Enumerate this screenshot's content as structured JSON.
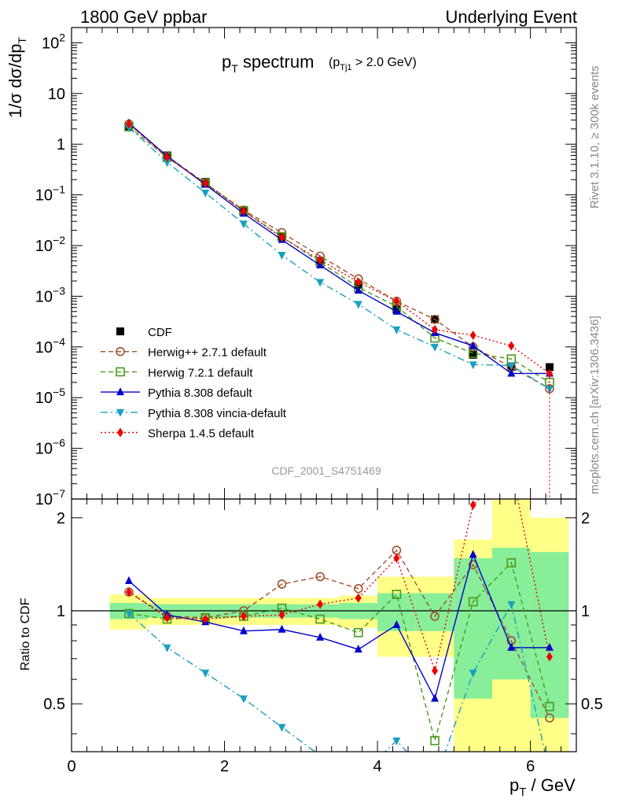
{
  "header": {
    "left": "1800 GeV ppbar",
    "right": "Underlying Event",
    "plot_title": "p",
    "plot_title_sub": "T",
    "plot_title_rest": " spectrum",
    "cut_open": "(p",
    "cut_sub": "Tj1",
    "cut_rest": " > 2.0 GeV)",
    "watermark": "CDF_2001_S4751469"
  },
  "side_labels": {
    "rivet": "Rivet 3.1.10, ≥ 300k events",
    "mcplots": "mcplots.cern.ch [arXiv:1306.3436]"
  },
  "colors": {
    "cdf": "#000000",
    "herwigpp": "#a0522d",
    "herwig7": "#4a9a1a",
    "pythia": "#0000cc",
    "vincia": "#1aa0c0",
    "sherpa": "#ee0000",
    "band_yellow": "#ffff88",
    "band_green": "#88ee99"
  },
  "chart_data": [
    {
      "type": "line",
      "title": "",
      "xlabel": "",
      "ylabel": "1/σ dσ/dp_T",
      "y_scale": "log",
      "ylim": [
        1e-07,
        200
      ],
      "xlim": [
        0,
        6.6
      ],
      "y_ticks": [
        {
          "v": 100,
          "base": "10",
          "exp": "2"
        },
        {
          "v": 10,
          "base": "10",
          "exp": ""
        },
        {
          "v": 1,
          "base": "1",
          "exp": ""
        },
        {
          "v": 0.1,
          "base": "10",
          "exp": "−1"
        },
        {
          "v": 0.01,
          "base": "10",
          "exp": "−2"
        },
        {
          "v": 0.001,
          "base": "10",
          "exp": "−3"
        },
        {
          "v": 0.0001,
          "base": "10",
          "exp": "−4"
        },
        {
          "v": 1e-05,
          "base": "10",
          "exp": "−5"
        },
        {
          "v": 1e-06,
          "base": "10",
          "exp": "−6"
        },
        {
          "v": 1e-07,
          "base": "10",
          "exp": "−7"
        }
      ],
      "legend_position": "bottom-left",
      "x": [
        0.75,
        1.25,
        1.75,
        2.25,
        2.75,
        3.25,
        3.75,
        4.25,
        4.75,
        5.25,
        5.75,
        6.25
      ],
      "series": [
        {
          "name": "CDF",
          "key": "cdf",
          "marker": "square",
          "line": "none",
          "values": [
            2.2,
            0.6,
            0.18,
            0.05,
            0.015,
            0.005,
            0.0017,
            0.00055,
            0.00035,
            7e-05,
            4e-05,
            4e-05
          ]
        },
        {
          "name": "Herwig++ 2.7.1 default",
          "key": "herwigpp",
          "marker": "circle-open",
          "line": "dashed",
          "values": [
            2.5,
            0.58,
            0.17,
            0.05,
            0.018,
            0.0062,
            0.0022,
            0.0008,
            0.00035,
            0.0001,
            4e-05,
            1.5e-05
          ]
        },
        {
          "name": "Herwig 7.2.1 default",
          "key": "herwig7",
          "marker": "square-open",
          "line": "dashed",
          "values": [
            2.2,
            0.55,
            0.17,
            0.048,
            0.015,
            0.0047,
            0.0015,
            0.00063,
            0.00015,
            7.5e-05,
            5.8e-05,
            2e-05
          ]
        },
        {
          "name": "Pythia 8.308 default",
          "key": "pythia",
          "marker": "triangle-up",
          "line": "solid",
          "values": [
            2.6,
            0.58,
            0.16,
            0.043,
            0.013,
            0.0041,
            0.0013,
            0.0005,
            0.00019,
            0.000105,
            3e-05,
            3e-05
          ]
        },
        {
          "name": "Pythia 8.308 vincia-default",
          "key": "vincia",
          "marker": "triangle-down",
          "line": "dashdot",
          "values": [
            2.15,
            0.44,
            0.11,
            0.027,
            0.0065,
            0.0019,
            0.0007,
            0.00022,
            0.0001,
            4.5e-05,
            4.3e-05,
            1.5e-05
          ]
        },
        {
          "name": "Sherpa 1.4.5 default",
          "key": "sherpa",
          "marker": "diamond",
          "line": "dotted",
          "values": [
            2.5,
            0.55,
            0.17,
            0.048,
            0.0145,
            0.0052,
            0.0019,
            0.0008,
            0.00022,
            0.00017,
            0.000105,
            3e-05
          ]
        }
      ]
    },
    {
      "type": "line",
      "title": "",
      "xlabel": "p_T / GeV",
      "ylabel": "Ratio to CDF",
      "ylim": [
        0.35,
        2.3
      ],
      "xlim": [
        0,
        6.6
      ],
      "x_ticks": [
        0,
        2,
        4,
        6
      ],
      "y_ticks_left": [
        2,
        1,
        0.5
      ],
      "y_ticks_right": [
        2,
        1,
        0.5
      ],
      "x": [
        0.75,
        1.25,
        1.75,
        2.25,
        2.75,
        3.25,
        3.75,
        4.25,
        4.75,
        5.25,
        5.75,
        6.25
      ],
      "bands": [
        {
          "x0": 0.5,
          "x1": 1.0,
          "green": [
            0.94,
            1.06
          ],
          "yellow": [
            0.87,
            1.13
          ]
        },
        {
          "x0": 1.0,
          "x1": 1.5,
          "green": [
            0.95,
            1.05
          ],
          "yellow": [
            0.9,
            1.1
          ]
        },
        {
          "x0": 1.5,
          "x1": 2.0,
          "green": [
            0.95,
            1.05
          ],
          "yellow": [
            0.9,
            1.1
          ]
        },
        {
          "x0": 2.0,
          "x1": 2.5,
          "green": [
            0.95,
            1.05
          ],
          "yellow": [
            0.9,
            1.1
          ]
        },
        {
          "x0": 2.5,
          "x1": 3.0,
          "green": [
            0.95,
            1.05
          ],
          "yellow": [
            0.9,
            1.1
          ]
        },
        {
          "x0": 3.0,
          "x1": 3.5,
          "green": [
            0.95,
            1.05
          ],
          "yellow": [
            0.9,
            1.1
          ]
        },
        {
          "x0": 3.5,
          "x1": 4.0,
          "green": [
            0.94,
            1.06
          ],
          "yellow": [
            0.88,
            1.12
          ]
        },
        {
          "x0": 4.0,
          "x1": 4.5,
          "green": [
            0.86,
            1.14
          ],
          "yellow": [
            0.71,
            1.29
          ]
        },
        {
          "x0": 4.5,
          "x1": 5.0,
          "green": [
            0.86,
            1.14
          ],
          "yellow": [
            0.71,
            1.29
          ]
        },
        {
          "x0": 5.0,
          "x1": 5.5,
          "green": [
            0.52,
            1.48
          ],
          "yellow": [
            0.3,
            1.7
          ]
        },
        {
          "x0": 5.5,
          "x1": 6.0,
          "green": [
            0.6,
            1.6
          ],
          "yellow": [
            0.3,
            2.5
          ]
        },
        {
          "x0": 6.0,
          "x1": 6.5,
          "green": [
            0.45,
            1.55
          ],
          "yellow": [
            0.2,
            2.0
          ]
        }
      ],
      "series": [
        {
          "name": "Herwig++ 2.7.1 default",
          "key": "herwigpp",
          "values": [
            1.15,
            0.96,
            0.95,
            1.0,
            1.22,
            1.29,
            1.18,
            1.57,
            0.96,
            1.41,
            0.8,
            0.45
          ]
        },
        {
          "name": "Herwig 7.2.1 default",
          "key": "herwig7",
          "values": [
            0.98,
            0.94,
            0.95,
            0.96,
            1.02,
            0.94,
            0.85,
            1.13,
            0.38,
            1.07,
            1.43,
            0.49
          ]
        },
        {
          "name": "Pythia 8.308 default",
          "key": "pythia",
          "values": [
            1.25,
            0.97,
            0.92,
            0.86,
            0.87,
            0.82,
            0.75,
            0.9,
            0.52,
            1.52,
            0.76,
            0.76
          ]
        },
        {
          "name": "Pythia 8.308 vincia-default",
          "key": "vincia",
          "values": [
            0.98,
            0.76,
            0.63,
            0.52,
            0.42,
            0.34,
            0.29,
            0.38,
            0.28,
            0.63,
            1.05,
            0.3
          ]
        },
        {
          "name": "Sherpa 1.4.5 default",
          "key": "sherpa",
          "values": [
            1.15,
            0.95,
            0.94,
            0.96,
            0.97,
            1.05,
            1.1,
            1.48,
            0.64,
            2.2,
            2.9,
            0.71
          ]
        }
      ]
    }
  ]
}
